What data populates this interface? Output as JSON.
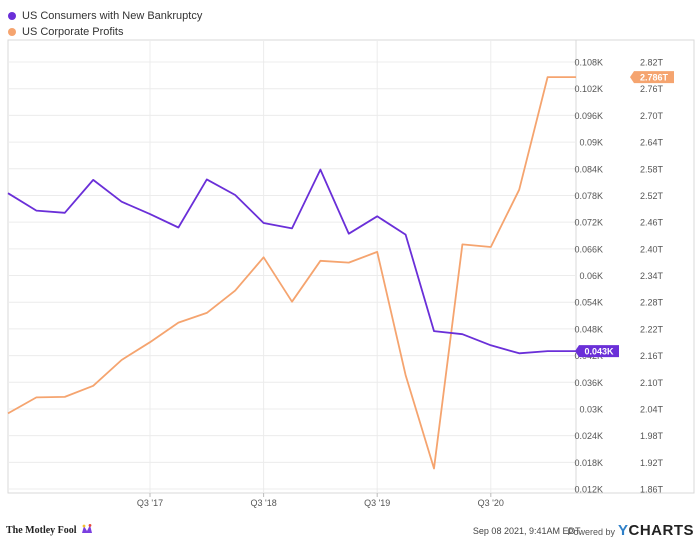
{
  "chart_data": {
    "type": "line",
    "x_labels": [
      "Q3 '17",
      "Q3 '18",
      "Q3 '19",
      "Q3 '20"
    ],
    "left_axis": {
      "ticks": [
        "0.012K",
        "0.018K",
        "0.024K",
        "0.03K",
        "0.036K",
        "0.042K",
        "0.048K",
        "0.054K",
        "0.06K",
        "0.066K",
        "0.072K",
        "0.078K",
        "0.084K",
        "0.09K",
        "0.096K",
        "0.102K",
        "0.108K"
      ],
      "range": [
        0.012,
        0.108
      ]
    },
    "right_axis": {
      "ticks": [
        "1.86T",
        "1.92T",
        "1.98T",
        "2.04T",
        "2.10T",
        "2.16T",
        "2.22T",
        "2.28T",
        "2.34T",
        "2.40T",
        "2.46T",
        "2.52T",
        "2.58T",
        "2.64T",
        "2.70T",
        "2.76T",
        "2.82T"
      ],
      "range": [
        1.86,
        2.82
      ]
    },
    "series": [
      {
        "name": "US Consumers with New Bankruptcy",
        "color": "#6a2fd8",
        "axis": "left",
        "last_label": "0.043K",
        "x": [
          "2016Q2",
          "2016Q3",
          "2016Q4",
          "2017Q1",
          "2017Q2",
          "2017Q3",
          "2017Q4",
          "2018Q1",
          "2018Q2",
          "2018Q3",
          "2018Q4",
          "2019Q1",
          "2019Q2",
          "2019Q3",
          "2019Q4",
          "2020Q1",
          "2020Q2",
          "2020Q3",
          "2020Q4",
          "2021Q1",
          "2021Q2"
        ],
        "values": [
          0.0785,
          0.0746,
          0.0741,
          0.0815,
          0.0766,
          0.0738,
          0.0708,
          0.0816,
          0.0781,
          0.0718,
          0.0706,
          0.0838,
          0.0694,
          0.0733,
          0.0692,
          0.0475,
          0.0468,
          0.0443,
          0.0425,
          0.043,
          0.043
        ]
      },
      {
        "name": "US Corporate Profits",
        "color": "#f5a46f",
        "axis": "right",
        "last_label": "2.786T",
        "x": [
          "2016Q2",
          "2016Q3",
          "2016Q4",
          "2017Q1",
          "2017Q2",
          "2017Q3",
          "2017Q4",
          "2018Q1",
          "2018Q2",
          "2018Q3",
          "2018Q4",
          "2019Q1",
          "2019Q2",
          "2019Q3",
          "2019Q4",
          "2020Q1",
          "2020Q2",
          "2020Q3",
          "2020Q4",
          "2021Q1",
          "2021Q2"
        ],
        "values": [
          2.03,
          2.066,
          2.067,
          2.092,
          2.15,
          2.19,
          2.234,
          2.256,
          2.306,
          2.381,
          2.281,
          2.373,
          2.369,
          2.393,
          2.116,
          1.906,
          2.41,
          2.404,
          2.533,
          2.786,
          2.786
        ]
      }
    ],
    "grid": true,
    "legend_position": "top-left"
  },
  "footer": {
    "brand": "The Motley Fool",
    "timestamp": "Sep 08 2021, 9:41AM EDT.",
    "powered_by": "Powered by",
    "ycharts_y": "Y",
    "ycharts_rest": "CHARTS"
  }
}
